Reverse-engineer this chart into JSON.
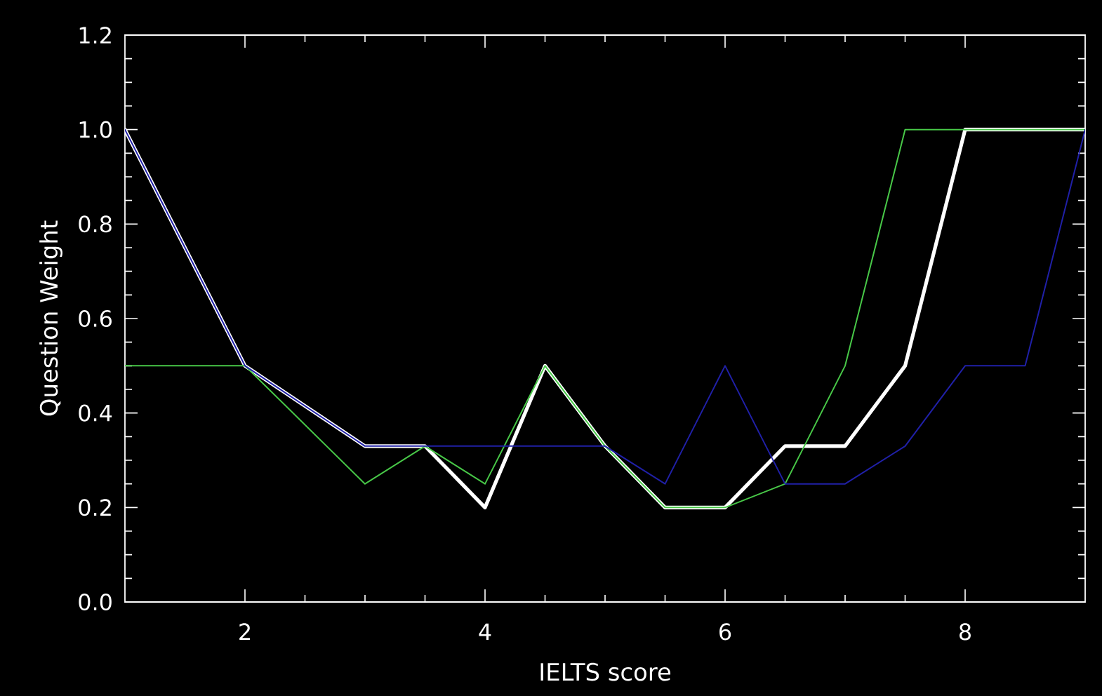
{
  "chart_data": {
    "type": "line",
    "xlabel": "IELTS score",
    "ylabel": "Question Weight",
    "xlim": [
      1,
      9
    ],
    "ylim": [
      0,
      1.2
    ],
    "xticks": [
      2,
      4,
      6,
      8
    ],
    "yticks": [
      {
        "value": 0,
        "label": "0.0"
      },
      0.2,
      0.4,
      0.6,
      0.8,
      {
        "value": 1,
        "label": "1.0"
      },
      1.2
    ],
    "x": [
      1,
      2,
      3,
      3.5,
      4,
      4.5,
      5,
      5.5,
      6,
      6.5,
      7,
      7.5,
      8,
      8.5,
      9
    ],
    "series": [
      {
        "color": "#ffffff",
        "values": [
          1,
          0.5,
          0.33,
          0.33,
          0.2,
          0.5,
          0.33,
          0.2,
          0.2,
          0.33,
          0.33,
          0.5,
          1,
          1,
          1
        ]
      },
      {
        "color": "#48c848",
        "values": [
          0.5,
          0.5,
          0.25,
          0.33,
          0.25,
          0.5,
          0.33,
          0.2,
          0.2,
          0.25,
          0.5,
          1,
          1,
          1,
          1
        ]
      },
      {
        "color": "#2020a8",
        "values": [
          1,
          0.5,
          0.33,
          0.33,
          0.33,
          0.33,
          0.33,
          0.25,
          0.5,
          0.25,
          0.25,
          0.33,
          0.5,
          0.5,
          1
        ]
      }
    ]
  }
}
